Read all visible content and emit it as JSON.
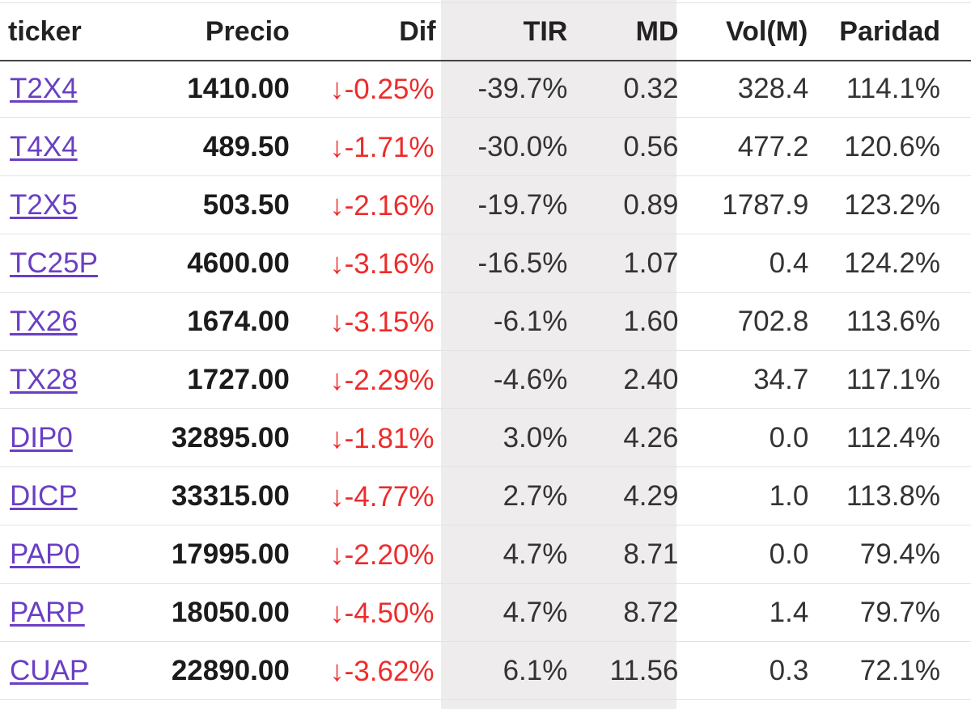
{
  "table": {
    "headers": {
      "ticker": "ticker",
      "precio": "Precio",
      "dif": "Dif",
      "tir": "TIR",
      "md": "MD",
      "vol": "Vol(M)",
      "paridad": "Paridad"
    },
    "arrow_glyph": "↓",
    "rows": [
      {
        "ticker": "T2X4",
        "precio": "1410.00",
        "dif": "-0.25%",
        "tir": "-39.7%",
        "md": "0.32",
        "vol": "328.4",
        "paridad": "114.1%"
      },
      {
        "ticker": "T4X4",
        "precio": "489.50",
        "dif": "-1.71%",
        "tir": "-30.0%",
        "md": "0.56",
        "vol": "477.2",
        "paridad": "120.6%"
      },
      {
        "ticker": "T2X5",
        "precio": "503.50",
        "dif": "-2.16%",
        "tir": "-19.7%",
        "md": "0.89",
        "vol": "1787.9",
        "paridad": "123.2%"
      },
      {
        "ticker": "TC25P",
        "precio": "4600.00",
        "dif": "-3.16%",
        "tir": "-16.5%",
        "md": "1.07",
        "vol": "0.4",
        "paridad": "124.2%"
      },
      {
        "ticker": "TX26",
        "precio": "1674.00",
        "dif": "-3.15%",
        "tir": "-6.1%",
        "md": "1.60",
        "vol": "702.8",
        "paridad": "113.6%"
      },
      {
        "ticker": "TX28",
        "precio": "1727.00",
        "dif": "-2.29%",
        "tir": "-4.6%",
        "md": "2.40",
        "vol": "34.7",
        "paridad": "117.1%"
      },
      {
        "ticker": "DIP0",
        "precio": "32895.00",
        "dif": "-1.81%",
        "tir": "3.0%",
        "md": "4.26",
        "vol": "0.0",
        "paridad": "112.4%"
      },
      {
        "ticker": "DICP",
        "precio": "33315.00",
        "dif": "-4.77%",
        "tir": "2.7%",
        "md": "4.29",
        "vol": "1.0",
        "paridad": "113.8%"
      },
      {
        "ticker": "PAP0",
        "precio": "17995.00",
        "dif": "-2.20%",
        "tir": "4.7%",
        "md": "8.71",
        "vol": "0.0",
        "paridad": "79.4%"
      },
      {
        "ticker": "PARP",
        "precio": "18050.00",
        "dif": "-4.50%",
        "tir": "4.7%",
        "md": "8.72",
        "vol": "1.4",
        "paridad": "79.7%"
      },
      {
        "ticker": "CUAP",
        "precio": "22890.00",
        "dif": "-3.62%",
        "tir": "6.1%",
        "md": "11.56",
        "vol": "0.3",
        "paridad": "72.1%"
      }
    ]
  },
  "colors": {
    "link": "#6a3fc3",
    "negative": "#ee2b2b",
    "shaded_columns": "#eeecec",
    "header_rule": "#444444"
  }
}
